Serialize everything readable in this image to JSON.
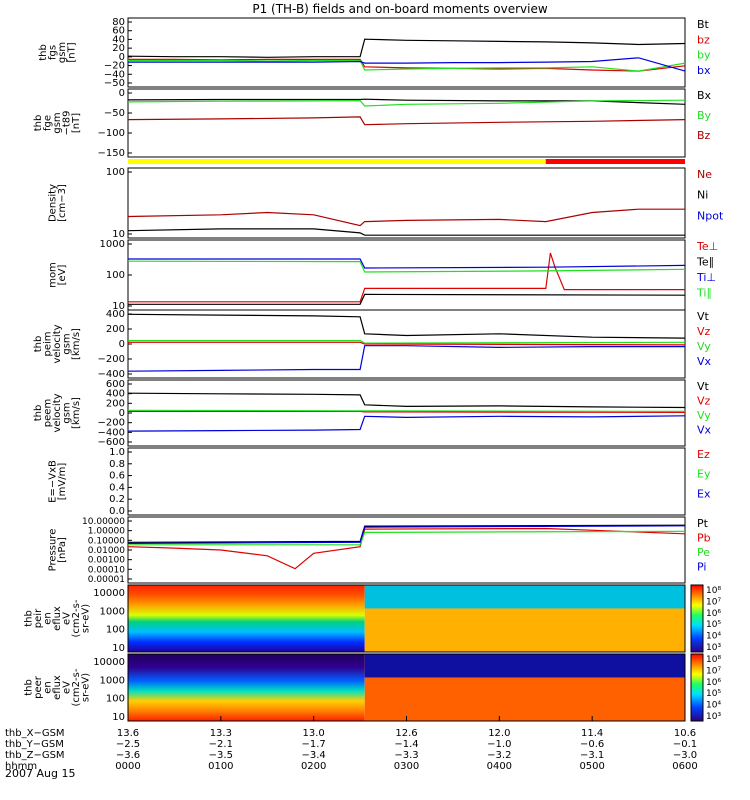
{
  "title": "P1 (TH-B) fields and on-board moments overview",
  "date_label": "2007 Aug 15",
  "colors": {
    "black": "#000000",
    "red": "#e00000",
    "green": "#20e020",
    "blue": "#0000dd",
    "darkred": "#aa0000",
    "yellow": "#ffff00",
    "barred": "#ff0000"
  },
  "chart_data": [
    {
      "type": "line",
      "ylabel": [
        "thb",
        "fgs",
        "gsm",
        "[nT]"
      ],
      "ylim": [
        -50,
        80
      ],
      "yticks": [
        "80",
        "60",
        "40",
        "20",
        "0",
        "−20",
        "−40",
        "−50"
      ],
      "series": [
        {
          "name": "Bt",
          "color": "black",
          "x": [
            0,
            0.5,
            1,
            1.5,
            2,
            2.5,
            2.55,
            3,
            3.5,
            4,
            4.5,
            5,
            5.5,
            6
          ],
          "y": [
            8,
            7,
            7,
            6,
            7,
            7,
            40,
            38,
            37,
            36,
            35,
            33,
            30,
            32
          ]
        },
        {
          "name": "bz",
          "color": "red",
          "x": [
            0,
            0.5,
            1,
            1.5,
            2,
            2.5,
            2.55,
            3,
            3.5,
            4,
            4.5,
            5,
            5.5,
            6
          ],
          "y": [
            2,
            2,
            1,
            2,
            2,
            2,
            -12,
            -14,
            -15,
            -16,
            -15,
            -18,
            -20,
            -10
          ]
        },
        {
          "name": "by",
          "color": "green",
          "x": [
            0,
            0.5,
            1,
            1.5,
            2,
            2.5,
            2.55,
            3,
            3.5,
            4,
            4.5,
            5,
            5.5,
            6
          ],
          "y": [
            0,
            0,
            0,
            -1,
            0,
            0,
            -18,
            -16,
            -15,
            -14,
            -14,
            -12,
            -20,
            -5
          ]
        },
        {
          "name": "bx",
          "color": "blue",
          "x": [
            0,
            0.5,
            1,
            1.5,
            2,
            2.5,
            2.55,
            3,
            3.5,
            4,
            4.5,
            5,
            5.5,
            6
          ],
          "y": [
            -3,
            -3,
            -3,
            -3,
            -3,
            -2,
            -5,
            -5,
            -4,
            -4,
            -3,
            -2,
            5,
            -20
          ]
        }
      ]
    },
    {
      "type": "line",
      "ylabel": [
        "thb",
        "fge",
        "gsm",
        "−t89",
        "[nT]"
      ],
      "ylim": [
        -170,
        30
      ],
      "yticks": [
        "0",
        "−50",
        "−100",
        "−150"
      ],
      "series": [
        {
          "name": "Bx",
          "color": "black",
          "x": [
            0,
            1,
            2,
            2.5,
            2.55,
            3,
            4,
            5,
            6
          ],
          "y": [
            -2,
            -1,
            -1,
            -1,
            0,
            -3,
            -5,
            -5,
            -15
          ]
        },
        {
          "name": "By",
          "color": "green",
          "x": [
            0,
            1,
            2,
            2.5,
            2.55,
            3,
            4,
            5,
            6
          ],
          "y": [
            -8,
            -6,
            -5,
            -4,
            -20,
            -15,
            -12,
            -5,
            -3
          ]
        },
        {
          "name": "Bz",
          "color": "darkred",
          "x": [
            0,
            1,
            2,
            2.5,
            2.55,
            3,
            4,
            5,
            6
          ],
          "y": [
            -60,
            -58,
            -55,
            -52,
            -75,
            -72,
            -68,
            -65,
            -60
          ]
        }
      ]
    },
    {
      "type": "line",
      "scale": "log",
      "ylabel": [
        "Density",
        "[cm−3]"
      ],
      "ylim": [
        6,
        300
      ],
      "yticks": [
        "100",
        "10"
      ],
      "series": [
        {
          "name": "Ne",
          "color": "darkred",
          "x": [
            0,
            1,
            1.5,
            2,
            2.5,
            2.55,
            3,
            4,
            4.5,
            5,
            5.5,
            6
          ],
          "y": [
            20,
            22,
            25,
            22,
            12,
            15,
            16,
            17,
            15,
            25,
            30,
            30
          ]
        },
        {
          "name": "Ni",
          "color": "black",
          "x": [
            0,
            1,
            2,
            2.5,
            2.55,
            6
          ],
          "y": [
            9,
            10,
            10,
            8,
            7,
            7
          ]
        },
        {
          "name": "Npot",
          "color": "blue",
          "x": [],
          "y": []
        }
      ]
    },
    {
      "type": "line",
      "scale": "log",
      "ylabel": [
        "mom",
        "[eV]"
      ],
      "ylim": [
        8,
        3000
      ],
      "yticks": [
        "1000",
        "100",
        "10"
      ],
      "series": [
        {
          "name": "Te⊥",
          "color": "red",
          "x": [
            0,
            2.5,
            2.55,
            4.5,
            4.55,
            4.6,
            4.7,
            6
          ],
          "y": [
            16,
            16,
            50,
            50,
            1000,
            300,
            45,
            45
          ]
        },
        {
          "name": "Te∥",
          "color": "black",
          "x": [
            0,
            2.5,
            2.55,
            6
          ],
          "y": [
            13,
            13,
            30,
            28
          ]
        },
        {
          "name": "Ti⊥",
          "color": "blue",
          "x": [
            0,
            2.5,
            2.55,
            4.5,
            6
          ],
          "y": [
            600,
            600,
            280,
            300,
            350
          ]
        },
        {
          "name": "Ti∥",
          "color": "green",
          "x": [
            0,
            2.5,
            2.55,
            4.5,
            6
          ],
          "y": [
            500,
            480,
            200,
            220,
            250
          ]
        }
      ]
    },
    {
      "type": "line",
      "ylabel": [
        "thb",
        "peim",
        "velocity",
        "gsm",
        "[km/s]"
      ],
      "ylim": [
        -400,
        400
      ],
      "yticks": [
        "400",
        "200",
        "0",
        "−200",
        "−400"
      ],
      "series": [
        {
          "name": "Vt",
          "color": "black",
          "x": [
            0,
            1,
            2,
            2.5,
            2.55,
            3,
            4,
            5,
            6
          ],
          "y": [
            350,
            340,
            330,
            320,
            120,
            100,
            120,
            80,
            70
          ]
        },
        {
          "name": "Vz",
          "color": "red",
          "x": [
            0,
            2.5,
            2.55,
            6
          ],
          "y": [
            20,
            20,
            0,
            -10
          ]
        },
        {
          "name": "Vy",
          "color": "green",
          "x": [
            0,
            2.5,
            2.55,
            6
          ],
          "y": [
            40,
            40,
            10,
            20
          ]
        },
        {
          "name": "Vx",
          "color": "blue",
          "x": [
            0,
            1,
            2,
            2.5,
            2.55,
            3,
            4,
            5,
            6
          ],
          "y": [
            -320,
            -310,
            -300,
            -300,
            -20,
            -20,
            -40,
            -30,
            -30
          ]
        }
      ]
    },
    {
      "type": "line",
      "ylabel": [
        "thb",
        "peem",
        "velocity",
        "gsm",
        "[km/s]"
      ],
      "ylim": [
        -600,
        600
      ],
      "yticks": [
        "600",
        "400",
        "200",
        "0",
        "−200",
        "−400",
        "−600"
      ],
      "series": [
        {
          "name": "Vt",
          "color": "black",
          "x": [
            0,
            1,
            2,
            2.5,
            2.55,
            3,
            4,
            5,
            6
          ],
          "y": [
            360,
            350,
            340,
            330,
            150,
            120,
            130,
            110,
            100
          ]
        },
        {
          "name": "Vz",
          "color": "red",
          "x": [
            0,
            2.5,
            2.55,
            6
          ],
          "y": [
            30,
            30,
            20,
            10
          ]
        },
        {
          "name": "Vy",
          "color": "green",
          "x": [
            0,
            2.5,
            2.55,
            6
          ],
          "y": [
            50,
            40,
            40,
            30
          ]
        },
        {
          "name": "Vx",
          "color": "blue",
          "x": [
            0,
            1,
            2,
            2.5,
            2.55,
            3,
            4,
            5,
            6
          ],
          "y": [
            -330,
            -320,
            -310,
            -300,
            -60,
            -80,
            -60,
            -70,
            -50
          ]
        }
      ]
    },
    {
      "type": "line",
      "ylabel": [
        "E=−VxB",
        "[mV/m]"
      ],
      "ylim": [
        0,
        1
      ],
      "yticks": [
        "1.0",
        "0.8",
        "0.6",
        "0.4",
        "0.2",
        "0.0"
      ],
      "series": [
        {
          "name": "Ez",
          "color": "red",
          "x": [],
          "y": []
        },
        {
          "name": "Ey",
          "color": "green",
          "x": [],
          "y": []
        },
        {
          "name": "Ex",
          "color": "blue",
          "x": [],
          "y": []
        }
      ]
    },
    {
      "type": "line",
      "scale": "log",
      "ylabel": [
        "Pressure",
        "[nPa]"
      ],
      "ylim": [
        1e-05,
        10
      ],
      "yticks": [
        "10.00000",
        "1.00000",
        "0.10000",
        "0.01000",
        "0.00100",
        "0.00010",
        "0.00001"
      ],
      "series": [
        {
          "name": "Pt",
          "color": "black",
          "x": [
            0,
            2.5,
            2.55,
            6
          ],
          "y": [
            0.05,
            0.06,
            1.5,
            1.8
          ]
        },
        {
          "name": "Pb",
          "color": "red",
          "x": [
            0,
            0.5,
            1,
            1.5,
            1.8,
            2,
            2.5,
            2.55,
            4.5,
            6
          ],
          "y": [
            0.02,
            0.015,
            0.01,
            0.003,
            0.0002,
            0.005,
            0.02,
            0.8,
            0.9,
            0.3
          ]
        },
        {
          "name": "Pe",
          "color": "green",
          "x": [
            0,
            2.5,
            2.55,
            6
          ],
          "y": [
            0.03,
            0.03,
            0.4,
            0.5
          ]
        },
        {
          "name": "Pi",
          "color": "blue",
          "x": [
            0,
            2.5,
            2.55,
            6
          ],
          "y": [
            0.04,
            0.05,
            1.2,
            1.6
          ]
        }
      ]
    },
    {
      "type": "heatmap",
      "ylabel": [
        "thb",
        "peir",
        "en",
        "eflux",
        "eV",
        "(cm2-s-",
        "sr-eV)"
      ],
      "yticks": [
        "10000",
        "1000",
        "100",
        "10"
      ],
      "colorbar_ticks": [
        "10⁸",
        "10⁷",
        "10⁶",
        "10⁵",
        "10⁴",
        "10³"
      ]
    },
    {
      "type": "heatmap",
      "ylabel": [
        "thb",
        "peer",
        "en",
        "eflux",
        "eV",
        "(cm2-s-",
        "sr-eV)"
      ],
      "yticks": [
        "10000",
        "1000",
        "100",
        "10"
      ],
      "colorbar_ticks": [
        "10⁸",
        "10⁷",
        "10⁶",
        "10⁵",
        "10⁴",
        "10³"
      ]
    }
  ],
  "time_axis": {
    "rows": [
      {
        "label": "thb_X−GSM",
        "values": [
          "13.6",
          "13.3",
          "13.0",
          "12.6",
          "12.0",
          "11.4",
          "10.6"
        ]
      },
      {
        "label": "thb_Y−GSM",
        "values": [
          "−2.5",
          "−2.1",
          "−1.7",
          "−1.4",
          "−1.0",
          "−0.6",
          "−0.1"
        ]
      },
      {
        "label": "thb_Z−GSM",
        "values": [
          "−3.6",
          "−3.5",
          "−3.4",
          "−3.3",
          "−3.2",
          "−3.1",
          "−3.0"
        ]
      },
      {
        "label": "hhmm",
        "values": [
          "0000",
          "0100",
          "0200",
          "0300",
          "0400",
          "0500",
          "0600"
        ]
      }
    ]
  }
}
